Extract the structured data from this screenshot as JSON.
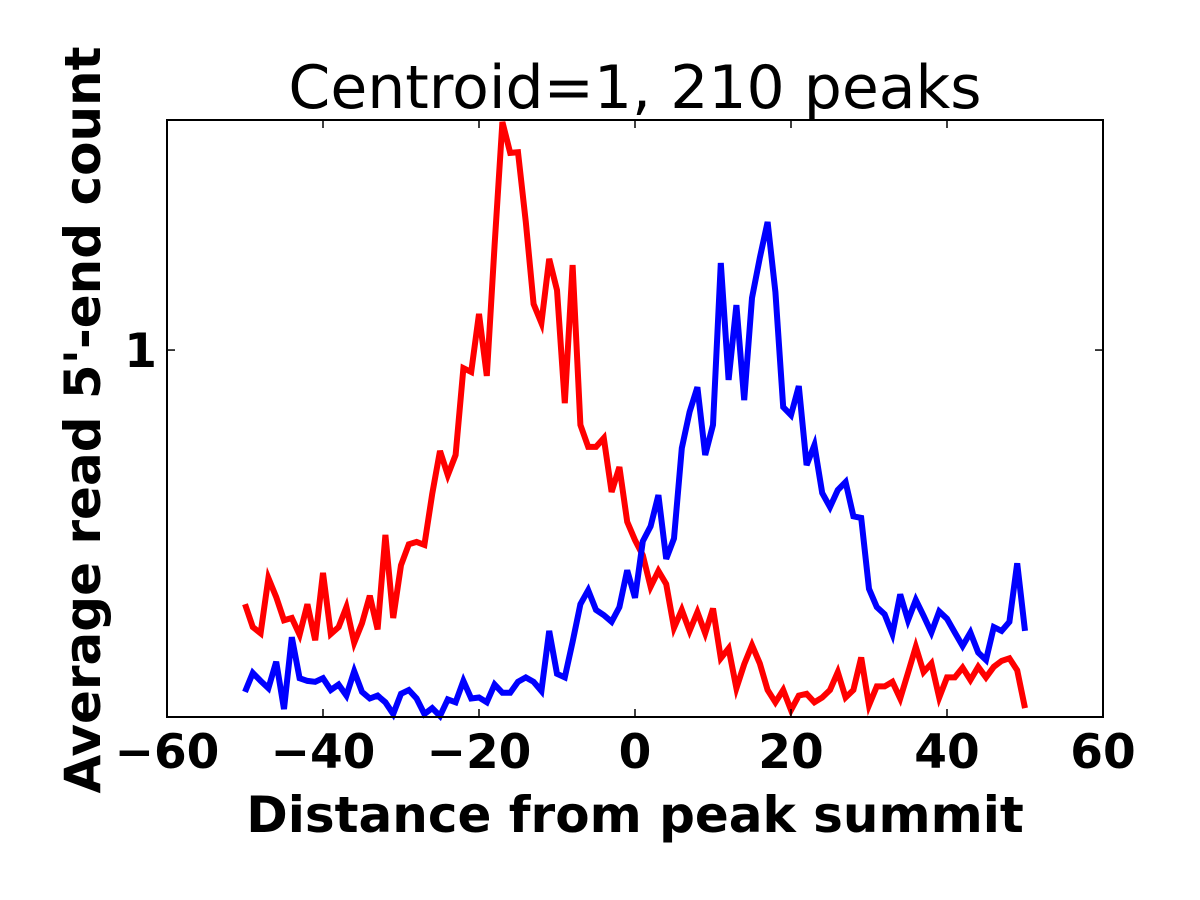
{
  "chart_data": {
    "type": "line",
    "title": "Centroid=1, 210 peaks",
    "xlabel": "Distance from peak summit",
    "ylabel": "Average read 5'-end count",
    "xlim": [
      -60,
      60
    ],
    "ylim": [
      0.331,
      2.0
    ],
    "yscale": "log",
    "xticks": [
      -60,
      -40,
      -20,
      0,
      20,
      40,
      60
    ],
    "xtick_labels": [
      "−60",
      "−40",
      "−20",
      "0",
      "20",
      "40",
      "60"
    ],
    "yticks": [
      1
    ],
    "ytick_labels": [
      "1"
    ],
    "grid": false,
    "x_start": -50,
    "x_step": 1,
    "series": [
      {
        "color": "#ff0000",
        "values": [
          0.465,
          0.434,
          0.426,
          0.503,
          0.475,
          0.443,
          0.446,
          0.424,
          0.465,
          0.417,
          0.511,
          0.425,
          0.434,
          0.461,
          0.414,
          0.439,
          0.477,
          0.431,
          0.573,
          0.446,
          0.523,
          0.557,
          0.561,
          0.556,
          0.648,
          0.738,
          0.686,
          0.729,
          0.947,
          0.936,
          1.115,
          0.925,
          1.372,
          1.988,
          1.811,
          1.815,
          1.471,
          1.149,
          1.085,
          1.316,
          1.198,
          0.852,
          1.292,
          0.798,
          0.747,
          0.747,
          0.767,
          0.652,
          0.703,
          0.596,
          0.564,
          0.539,
          0.49,
          0.514,
          0.494,
          0.433,
          0.457,
          0.429,
          0.454,
          0.426,
          0.459,
          0.395,
          0.407,
          0.361,
          0.388,
          0.411,
          0.389,
          0.359,
          0.346,
          0.359,
          0.338,
          0.353,
          0.355,
          0.346,
          0.351,
          0.359,
          0.379,
          0.351,
          0.359,
          0.396,
          0.343,
          0.363,
          0.363,
          0.368,
          0.35,
          0.378,
          0.409,
          0.379,
          0.389,
          0.351,
          0.373,
          0.373,
          0.384,
          0.37,
          0.385,
          0.373,
          0.385,
          0.392,
          0.395,
          0.381,
          0.34
        ]
      },
      {
        "color": "#0000ff",
        "values": [
          0.357,
          0.378,
          0.369,
          0.361,
          0.391,
          0.339,
          0.421,
          0.372,
          0.369,
          0.368,
          0.372,
          0.359,
          0.365,
          0.353,
          0.38,
          0.357,
          0.35,
          0.353,
          0.346,
          0.334,
          0.355,
          0.359,
          0.35,
          0.334,
          0.34,
          0.332,
          0.349,
          0.346,
          0.369,
          0.35,
          0.351,
          0.346,
          0.365,
          0.356,
          0.356,
          0.368,
          0.373,
          0.368,
          0.358,
          0.429,
          0.377,
          0.373,
          0.415,
          0.465,
          0.485,
          0.457,
          0.45,
          0.441,
          0.461,
          0.515,
          0.474,
          0.562,
          0.588,
          0.646,
          0.533,
          0.567,
          0.744,
          0.83,
          0.894,
          0.729,
          0.798,
          1.3,
          0.914,
          1.145,
          0.86,
          1.17,
          1.32,
          1.471,
          1.191,
          0.842,
          0.822,
          0.897,
          0.707,
          0.751,
          0.65,
          0.623,
          0.656,
          0.672,
          0.606,
          0.603,
          0.487,
          0.461,
          0.451,
          0.425,
          0.479,
          0.443,
          0.471,
          0.449,
          0.427,
          0.455,
          0.445,
          0.427,
          0.41,
          0.427,
          0.402,
          0.393,
          0.434,
          0.429,
          0.441,
          0.526,
          0.429
        ]
      }
    ]
  }
}
